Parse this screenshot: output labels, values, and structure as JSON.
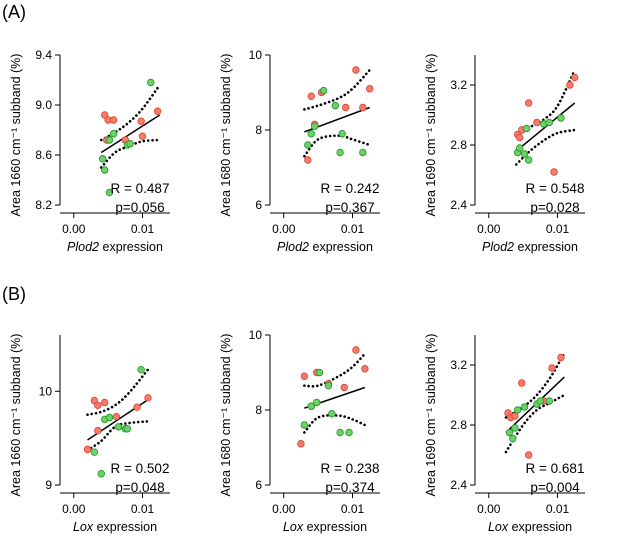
{
  "panel_labels": [
    "(A)",
    "(B)"
  ],
  "chart_data": [
    {
      "type": "scatter",
      "row": 0,
      "col": 0,
      "ylabel": "Area 1660 cm⁻¹ subband (%)",
      "xlabel_gene": "Plod2",
      "xlabel_rest": " expression",
      "xticks": [
        "0.00",
        "0.01"
      ],
      "yticks": [
        "8.2",
        "8.6",
        "9.0",
        "9.4"
      ],
      "xlim": [
        -0.002,
        0.014
      ],
      "ylim": [
        8.2,
        9.4
      ],
      "stats": [
        "R = 0.487",
        "p=0.056"
      ],
      "red": [
        [
          0.0045,
          8.92
        ],
        [
          0.005,
          8.88
        ],
        [
          0.0058,
          8.88
        ],
        [
          0.0048,
          8.72
        ],
        [
          0.0075,
          8.72
        ],
        [
          0.01,
          8.75
        ],
        [
          0.0122,
          8.95
        ],
        [
          0.0098,
          8.87
        ]
      ],
      "green": [
        [
          0.0042,
          8.57
        ],
        [
          0.0045,
          8.48
        ],
        [
          0.0052,
          8.72
        ],
        [
          0.0058,
          8.77
        ],
        [
          0.0078,
          8.68
        ],
        [
          0.0082,
          8.69
        ],
        [
          0.0112,
          9.18
        ],
        [
          0.0052,
          8.3
        ]
      ],
      "fit": [
        [
          0.004,
          8.62
        ],
        [
          0.0125,
          8.92
        ]
      ],
      "ci_upper": [
        [
          0.004,
          8.72
        ],
        [
          0.006,
          8.78
        ],
        [
          0.008,
          8.86
        ],
        [
          0.01,
          8.97
        ],
        [
          0.0125,
          9.16
        ]
      ],
      "ci_lower": [
        [
          0.004,
          8.5
        ],
        [
          0.006,
          8.62
        ],
        [
          0.008,
          8.67
        ],
        [
          0.01,
          8.71
        ],
        [
          0.0125,
          8.72
        ]
      ]
    },
    {
      "type": "scatter",
      "row": 0,
      "col": 1,
      "ylabel": "Area 1680 cm⁻¹ subband (%)",
      "xlabel_gene": "Plod2",
      "xlabel_rest": " expression",
      "xticks": [
        "0.00",
        "0.01"
      ],
      "yticks": [
        "6",
        "8",
        "10"
      ],
      "xlim": [
        -0.002,
        0.014
      ],
      "ylim": [
        6,
        10
      ],
      "stats": [
        "R = 0.242",
        "p=0.367"
      ],
      "red": [
        [
          0.0035,
          7.2
        ],
        [
          0.004,
          8.9
        ],
        [
          0.0055,
          9.0
        ],
        [
          0.0045,
          8.15
        ],
        [
          0.009,
          8.6
        ],
        [
          0.0105,
          9.6
        ],
        [
          0.0125,
          9.1
        ],
        [
          0.0115,
          8.6
        ]
      ],
      "green": [
        [
          0.0035,
          7.6
        ],
        [
          0.0045,
          8.1
        ],
        [
          0.0058,
          9.05
        ],
        [
          0.0075,
          8.65
        ],
        [
          0.0085,
          7.9
        ],
        [
          0.0082,
          7.4
        ],
        [
          0.0115,
          7.4
        ],
        [
          0.004,
          7.9
        ]
      ],
      "fit": [
        [
          0.003,
          7.95
        ],
        [
          0.0125,
          8.6
        ]
      ],
      "ci_upper": [
        [
          0.003,
          8.55
        ],
        [
          0.005,
          8.65
        ],
        [
          0.008,
          8.85
        ],
        [
          0.01,
          9.1
        ],
        [
          0.0125,
          9.6
        ]
      ],
      "ci_lower": [
        [
          0.003,
          7.3
        ],
        [
          0.005,
          7.75
        ],
        [
          0.008,
          7.85
        ],
        [
          0.01,
          7.75
        ],
        [
          0.0125,
          7.6
        ]
      ]
    },
    {
      "type": "scatter",
      "row": 0,
      "col": 2,
      "ylabel": "Area 1690 cm⁻¹ subband (%)",
      "xlabel_gene": "Plod2",
      "xlabel_rest": " expression",
      "xticks": [
        "0.00",
        "0.01"
      ],
      "yticks": [
        "2.4",
        "2.8",
        "3.2"
      ],
      "xlim": [
        -0.002,
        0.014
      ],
      "ylim": [
        2.4,
        3.4
      ],
      "stats": [
        "R = 0.548",
        "p=0.028"
      ],
      "red": [
        [
          0.0042,
          2.87
        ],
        [
          0.0045,
          2.85
        ],
        [
          0.0048,
          2.9
        ],
        [
          0.0058,
          3.08
        ],
        [
          0.007,
          2.95
        ],
        [
          0.0095,
          2.62
        ],
        [
          0.0118,
          3.2
        ],
        [
          0.0125,
          3.25
        ]
      ],
      "green": [
        [
          0.0042,
          2.75
        ],
        [
          0.0045,
          2.78
        ],
        [
          0.0052,
          2.74
        ],
        [
          0.0058,
          2.7
        ],
        [
          0.008,
          2.94
        ],
        [
          0.0088,
          2.95
        ],
        [
          0.0105,
          2.98
        ],
        [
          0.0055,
          2.91
        ]
      ],
      "fit": [
        [
          0.004,
          2.76
        ],
        [
          0.0125,
          3.08
        ]
      ],
      "ci_upper": [
        [
          0.004,
          2.88
        ],
        [
          0.006,
          2.92
        ],
        [
          0.008,
          2.97
        ],
        [
          0.01,
          3.06
        ],
        [
          0.0125,
          3.3
        ]
      ],
      "ci_lower": [
        [
          0.004,
          2.67
        ],
        [
          0.006,
          2.76
        ],
        [
          0.008,
          2.83
        ],
        [
          0.01,
          2.88
        ],
        [
          0.0125,
          2.9
        ]
      ]
    },
    {
      "type": "scatter",
      "row": 1,
      "col": 0,
      "ylabel": "Area 1660 cm⁻¹ subband (%)",
      "xlabel_gene": "Lox",
      "xlabel_rest": " expression",
      "xticks": [
        "0.00",
        "0.01"
      ],
      "yticks": [
        "9",
        "10"
      ],
      "xlim": [
        -0.002,
        0.014
      ],
      "ylim": [
        9,
        10.6
      ],
      "stats": [
        "R = 0.502",
        "p=0.048"
      ],
      "red": [
        [
          0.002,
          9.38
        ],
        [
          0.003,
          9.9
        ],
        [
          0.0035,
          9.85
        ],
        [
          0.0035,
          9.58
        ],
        [
          0.0045,
          9.88
        ],
        [
          0.0062,
          9.73
        ],
        [
          0.0092,
          9.83
        ],
        [
          0.0108,
          9.93
        ]
      ],
      "green": [
        [
          0.003,
          9.35
        ],
        [
          0.004,
          9.12
        ],
        [
          0.0045,
          9.7
        ],
        [
          0.0052,
          9.72
        ],
        [
          0.0065,
          9.62
        ],
        [
          0.0075,
          9.6
        ],
        [
          0.0078,
          9.6
        ],
        [
          0.0098,
          10.23
        ]
      ],
      "fit": [
        [
          0.002,
          9.48
        ],
        [
          0.011,
          9.92
        ]
      ],
      "ci_upper": [
        [
          0.002,
          9.75
        ],
        [
          0.004,
          9.78
        ],
        [
          0.006,
          9.85
        ],
        [
          0.008,
          9.98
        ],
        [
          0.011,
          10.25
        ]
      ],
      "ci_lower": [
        [
          0.002,
          9.37
        ],
        [
          0.004,
          9.47
        ],
        [
          0.006,
          9.62
        ],
        [
          0.008,
          9.66
        ],
        [
          0.011,
          9.68
        ]
      ]
    },
    {
      "type": "scatter",
      "row": 1,
      "col": 1,
      "ylabel": "Area 1680 cm⁻¹ subband (%)",
      "xlabel_gene": "Lox",
      "xlabel_rest": " expression",
      "xticks": [
        "0.00",
        "0.01"
      ],
      "yticks": [
        "6",
        "8",
        "10"
      ],
      "xlim": [
        -0.002,
        0.014
      ],
      "ylim": [
        6,
        10
      ],
      "stats": [
        "R = 0.238",
        "p=0.374"
      ],
      "red": [
        [
          0.0025,
          7.1
        ],
        [
          0.003,
          8.9
        ],
        [
          0.0048,
          9.0
        ],
        [
          0.004,
          8.1
        ],
        [
          0.0065,
          8.7
        ],
        [
          0.0088,
          8.6
        ],
        [
          0.0105,
          9.6
        ],
        [
          0.0118,
          9.1
        ]
      ],
      "green": [
        [
          0.003,
          7.6
        ],
        [
          0.004,
          8.1
        ],
        [
          0.0052,
          9.0
        ],
        [
          0.0065,
          8.65
        ],
        [
          0.007,
          7.9
        ],
        [
          0.0082,
          7.4
        ],
        [
          0.0095,
          7.4
        ],
        [
          0.0048,
          8.2
        ]
      ],
      "fit": [
        [
          0.003,
          8.05
        ],
        [
          0.0118,
          8.6
        ]
      ],
      "ci_upper": [
        [
          0.003,
          8.65
        ],
        [
          0.005,
          8.65
        ],
        [
          0.008,
          8.9
        ],
        [
          0.01,
          9.15
        ],
        [
          0.0118,
          9.5
        ]
      ],
      "ci_lower": [
        [
          0.003,
          7.4
        ],
        [
          0.005,
          7.8
        ],
        [
          0.008,
          7.85
        ],
        [
          0.01,
          7.75
        ],
        [
          0.0118,
          7.6
        ]
      ]
    },
    {
      "type": "scatter",
      "row": 1,
      "col": 2,
      "ylabel": "Area 1690 cm⁻¹ subband (%)",
      "xlabel_gene": "Lox",
      "xlabel_rest": " expression",
      "xticks": [
        "0.00",
        "0.01"
      ],
      "yticks": [
        "2.4",
        "2.8",
        "3.2"
      ],
      "xlim": [
        -0.002,
        0.014
      ],
      "ylim": [
        2.4,
        3.4
      ],
      "stats": [
        "R = 0.681",
        "p=0.004"
      ],
      "red": [
        [
          0.0028,
          2.88
        ],
        [
          0.0032,
          2.85
        ],
        [
          0.0038,
          2.86
        ],
        [
          0.0048,
          3.08
        ],
        [
          0.0058,
          2.6
        ],
        [
          0.008,
          2.96
        ],
        [
          0.0092,
          3.18
        ],
        [
          0.0105,
          3.25
        ]
      ],
      "green": [
        [
          0.003,
          2.75
        ],
        [
          0.0035,
          2.71
        ],
        [
          0.0038,
          2.78
        ],
        [
          0.0052,
          2.92
        ],
        [
          0.007,
          2.94
        ],
        [
          0.0075,
          2.96
        ],
        [
          0.0088,
          2.96
        ],
        [
          0.0042,
          2.9
        ]
      ],
      "fit": [
        [
          0.0025,
          2.75
        ],
        [
          0.011,
          3.12
        ]
      ],
      "ci_upper": [
        [
          0.0025,
          2.85
        ],
        [
          0.005,
          2.92
        ],
        [
          0.007,
          3.0
        ],
        [
          0.009,
          3.12
        ],
        [
          0.011,
          3.28
        ]
      ],
      "ci_lower": [
        [
          0.0025,
          2.62
        ],
        [
          0.005,
          2.8
        ],
        [
          0.007,
          2.9
        ],
        [
          0.009,
          2.95
        ],
        [
          0.011,
          3.0
        ]
      ]
    }
  ],
  "colors": {
    "red_fill": "#f47c6e",
    "red_stroke": "#e0412f",
    "green_fill": "#6fd06a",
    "green_stroke": "#1c9a25",
    "line": "#000000"
  }
}
